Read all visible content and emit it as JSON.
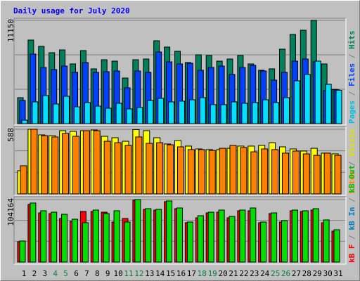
{
  "chart_data": {
    "type": "bar",
    "title": "Daily usage for July 2020",
    "categories": [
      "1",
      "2",
      "3",
      "4",
      "5",
      "6",
      "7",
      "8",
      "9",
      "10",
      "11",
      "12",
      "13",
      "14",
      "15",
      "16",
      "17",
      "18",
      "19",
      "20",
      "21",
      "22",
      "23",
      "24",
      "25",
      "26",
      "27",
      "28",
      "29",
      "30",
      "31"
    ],
    "category_color": "#000000",
    "highlight": [
      3,
      4,
      10,
      11,
      17,
      18,
      24,
      25
    ],
    "highlight_color": "#008040",
    "separator": " / ",
    "panels": [
      {
        "ylim": [
          0,
          11150
        ],
        "yticks": [
          11150
        ],
        "grid_divisions": 3,
        "legend": [
          {
            "name": "Pages",
            "color": "#00c0e0"
          },
          {
            "name": "Files",
            "color": "#0040ff"
          },
          {
            "name": "Hits",
            "color": "#00805c"
          }
        ],
        "series": [
          {
            "color": "#00805c",
            "values": [
              2806,
              9026,
              8344,
              7661,
              7964,
              6447,
              7888,
              5916,
              6902,
              6751,
              4930,
              6902,
              6978,
              8950,
              8268,
              7813,
              6599,
              7433,
              7357,
              6751,
              6978,
              7357,
              6447,
              5765,
              5916,
              8040,
              9633,
              10088,
              11150,
              6447,
              3700
            ]
          },
          {
            "color": "#0040ff",
            "values": [
              2503,
              7509,
              6068,
              5840,
              6220,
              5537,
              6599,
              5537,
              5613,
              5689,
              3868,
              5689,
              5537,
              7737,
              6675,
              6447,
              6523,
              5765,
              6068,
              6220,
              5310,
              6068,
              6296,
              5689,
              4703,
              5537,
              6751,
              6978,
              6675,
              3565,
              3650
            ]
          },
          {
            "color": "#00e0ff",
            "values": [
              379,
              2351,
              3034,
              2124,
              2958,
              1820,
              2276,
              1896,
              1669,
              2200,
              1593,
              1745,
              2503,
              2731,
              2351,
              2427,
              2579,
              2806,
              2048,
              2048,
              2351,
              2200,
              2276,
              2579,
              2276,
              2806,
              4627,
              5310,
              6751,
              4248,
              3600
            ]
          }
        ]
      },
      {
        "ylim": [
          0,
          588
        ],
        "yticks": [
          588
        ],
        "grid_divisions": 3,
        "legend": [
          {
            "name": "Sites",
            "color": "#ff8000"
          },
          {
            "name": "Visits",
            "color": "#e0e000"
          }
        ],
        "series": [
          {
            "color": "#ffff00",
            "values": [
              211,
              588,
              537,
              530,
              575,
              569,
              575,
              581,
              524,
              511,
              479,
              585,
              575,
              511,
              454,
              486,
              435,
              409,
              403,
              403,
              415,
              435,
              435,
              441,
              466,
              428,
              409,
              390,
              415,
              371,
              364
            ]
          },
          {
            "color": "#ff8000",
            "values": [
              256,
              588,
              530,
              518,
              550,
              524,
              575,
              575,
              479,
              466,
              441,
              518,
              460,
              466,
              447,
              428,
              403,
              403,
              396,
              415,
              441,
              422,
              383,
              409,
              403,
              371,
              390,
              364,
              351,
              371,
              351
            ]
          }
        ]
      },
      {
        "ylim": [
          0,
          104164
        ],
        "yticks": [
          104164
        ],
        "grid_divisions": 3,
        "legend": [
          {
            "name": "kB F",
            "color": "#ff0000"
          },
          {
            "name": "kB In",
            "color": "#0080c0"
          },
          {
            "name": "kB Out",
            "color": "#00c000"
          }
        ],
        "series": [
          {
            "color": "#ff0000",
            "values": [
              33930,
              95940,
              81900,
              80730,
              72540,
              67860,
              84240,
              84240,
              83070,
              66690,
              72540,
              102960,
              87750,
              86580,
              100620,
              88920,
              65520,
              73710,
              81900,
              83070,
              73710,
              85410,
              85410,
              65520,
              80730,
              66690,
              85410,
              84240,
              86580,
              65520,
              51480
            ]
          },
          {
            "color": "#00e000",
            "values": [
              35100,
              98280,
              85410,
              83070,
              79560,
              71370,
              65520,
              86580,
              80730,
              85410,
              66690,
              104164,
              88920,
              87750,
              101790,
              90090,
              66690,
              77220,
              83070,
              86580,
              76050,
              86580,
              90090,
              66690,
              81900,
              69030,
              86580,
              85410,
              88920,
              70200,
              53820
            ]
          }
        ]
      }
    ]
  }
}
